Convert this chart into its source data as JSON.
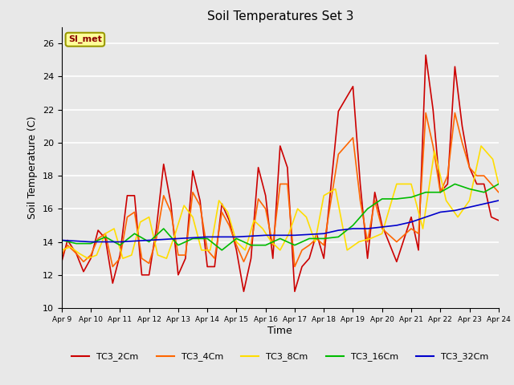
{
  "title": "Soil Temperatures Set 3",
  "xlabel": "Time",
  "ylabel": "Soil Temperature (C)",
  "ylim": [
    10,
    27
  ],
  "xlim": [
    0,
    15
  ],
  "plot_bg": "#e8e8e8",
  "fig_bg": "#e8e8e8",
  "grid_color": "#ffffff",
  "si_met_label": "SI_met",
  "series_colors": {
    "TC3_2Cm": "#cc0000",
    "TC3_4Cm": "#ff6600",
    "TC3_8Cm": "#ffdd00",
    "TC3_16Cm": "#00bb00",
    "TC3_32Cm": "#0000cc"
  },
  "x_tick_labels": [
    "Apr 9",
    "Apr 10",
    "Apr 11",
    "Apr 12",
    "Apr 13",
    "Apr 14",
    "Apr 15",
    "Apr 16",
    "Apr 17",
    "Apr 18",
    "Apr 19",
    "Apr 20",
    "Apr 21",
    "Apr 22",
    "Apr 23",
    "Apr 24"
  ],
  "TC3_2Cm_x": [
    0.0,
    0.2,
    0.5,
    0.75,
    1.0,
    1.25,
    1.5,
    1.75,
    2.0,
    2.25,
    2.5,
    2.75,
    3.0,
    3.25,
    3.5,
    3.75,
    4.0,
    4.25,
    4.5,
    4.75,
    5.0,
    5.25,
    5.5,
    5.75,
    6.0,
    6.25,
    6.5,
    6.75,
    7.0,
    7.25,
    7.5,
    7.75,
    8.0,
    8.25,
    8.5,
    8.75,
    9.0,
    9.5,
    10.0,
    10.25,
    10.5,
    10.75,
    11.0,
    11.5,
    12.0,
    12.25,
    12.5,
    12.75,
    13.0,
    13.25,
    13.5,
    13.75,
    14.0,
    14.25,
    14.5,
    14.75,
    15.0
  ],
  "TC3_2Cm_y": [
    12.8,
    14.1,
    13.3,
    12.2,
    13.0,
    14.7,
    14.2,
    11.5,
    13.2,
    16.8,
    16.8,
    12.0,
    12.0,
    14.8,
    18.7,
    16.3,
    12.0,
    13.0,
    18.3,
    16.5,
    12.5,
    12.5,
    16.3,
    15.3,
    13.5,
    11.0,
    13.0,
    18.5,
    16.8,
    13.0,
    19.8,
    18.5,
    11.0,
    12.5,
    13.0,
    14.5,
    13.0,
    21.9,
    23.4,
    17.5,
    13.0,
    17.0,
    15.0,
    12.8,
    15.5,
    13.5,
    25.3,
    22.0,
    17.0,
    17.5,
    24.6,
    21.0,
    18.5,
    17.5,
    17.5,
    15.5,
    15.3
  ],
  "TC3_4Cm_x": [
    0.0,
    0.2,
    0.5,
    0.75,
    1.0,
    1.25,
    1.5,
    1.75,
    2.0,
    2.25,
    2.5,
    2.75,
    3.0,
    3.25,
    3.5,
    3.75,
    4.0,
    4.25,
    4.5,
    4.75,
    5.0,
    5.25,
    5.5,
    5.75,
    6.0,
    6.25,
    6.5,
    6.75,
    7.0,
    7.25,
    7.5,
    7.75,
    8.0,
    8.25,
    8.5,
    8.75,
    9.0,
    9.5,
    10.0,
    10.25,
    10.5,
    10.75,
    11.0,
    11.5,
    12.0,
    12.25,
    12.5,
    12.75,
    13.0,
    13.25,
    13.5,
    13.75,
    14.0,
    14.25,
    14.5,
    14.75,
    15.0
  ],
  "TC3_4Cm_y": [
    13.2,
    13.8,
    13.3,
    12.8,
    13.2,
    14.2,
    14.5,
    12.5,
    13.0,
    15.5,
    15.8,
    13.0,
    12.7,
    14.2,
    16.8,
    15.8,
    13.2,
    13.2,
    17.0,
    16.2,
    13.5,
    13.0,
    15.8,
    15.0,
    13.8,
    12.8,
    13.8,
    16.6,
    16.0,
    13.8,
    17.5,
    17.5,
    12.5,
    13.5,
    13.8,
    14.2,
    13.8,
    19.3,
    20.3,
    16.5,
    14.0,
    16.5,
    14.8,
    14.0,
    14.8,
    14.5,
    21.8,
    19.8,
    17.0,
    18.0,
    21.8,
    20.0,
    18.5,
    18.0,
    18.0,
    17.5,
    17.0
  ],
  "TC3_8Cm_x": [
    0.0,
    0.3,
    0.6,
    0.9,
    1.2,
    1.5,
    1.8,
    2.1,
    2.4,
    2.7,
    3.0,
    3.3,
    3.6,
    3.9,
    4.2,
    4.5,
    4.8,
    5.1,
    5.4,
    5.7,
    6.0,
    6.3,
    6.6,
    6.9,
    7.2,
    7.5,
    7.8,
    8.1,
    8.4,
    8.7,
    9.0,
    9.4,
    9.8,
    10.2,
    10.6,
    11.0,
    11.5,
    12.0,
    12.4,
    12.8,
    13.2,
    13.6,
    14.0,
    14.4,
    14.8,
    15.0
  ],
  "TC3_8Cm_y": [
    13.5,
    13.7,
    13.3,
    13.0,
    13.2,
    14.5,
    14.8,
    13.0,
    13.2,
    15.2,
    15.5,
    13.2,
    13.0,
    14.5,
    16.2,
    15.5,
    13.5,
    13.5,
    16.5,
    15.8,
    14.0,
    13.5,
    15.3,
    14.8,
    14.0,
    13.5,
    14.5,
    16.0,
    15.5,
    14.0,
    16.8,
    17.2,
    13.5,
    14.0,
    14.2,
    14.5,
    17.5,
    17.5,
    14.8,
    19.5,
    16.5,
    15.5,
    16.5,
    19.8,
    19.0,
    17.5
  ],
  "TC3_16Cm_x": [
    0.0,
    0.5,
    1.0,
    1.5,
    2.0,
    2.5,
    3.0,
    3.5,
    4.0,
    4.5,
    5.0,
    5.5,
    6.0,
    6.5,
    7.0,
    7.5,
    8.0,
    8.5,
    9.0,
    9.5,
    10.0,
    10.5,
    11.0,
    11.5,
    12.0,
    12.5,
    13.0,
    13.5,
    14.0,
    14.5,
    15.0
  ],
  "TC3_16Cm_y": [
    14.1,
    13.9,
    13.9,
    14.3,
    13.8,
    14.5,
    14.0,
    14.8,
    13.8,
    14.2,
    14.2,
    13.5,
    14.2,
    13.8,
    13.8,
    14.2,
    13.8,
    14.2,
    14.2,
    14.3,
    15.0,
    16.0,
    16.6,
    16.6,
    16.7,
    17.0,
    17.0,
    17.5,
    17.2,
    17.0,
    17.5
  ],
  "TC3_32Cm_x": [
    0.0,
    1.0,
    2.0,
    3.0,
    4.0,
    5.0,
    6.0,
    7.0,
    8.0,
    9.0,
    9.5,
    10.0,
    10.5,
    11.0,
    11.5,
    12.0,
    12.5,
    13.0,
    13.5,
    14.0,
    14.5,
    15.0
  ],
  "TC3_32Cm_y": [
    14.1,
    14.0,
    14.0,
    14.1,
    14.2,
    14.3,
    14.3,
    14.4,
    14.4,
    14.5,
    14.7,
    14.8,
    14.8,
    14.9,
    15.0,
    15.2,
    15.5,
    15.8,
    15.9,
    16.1,
    16.3,
    16.5
  ]
}
